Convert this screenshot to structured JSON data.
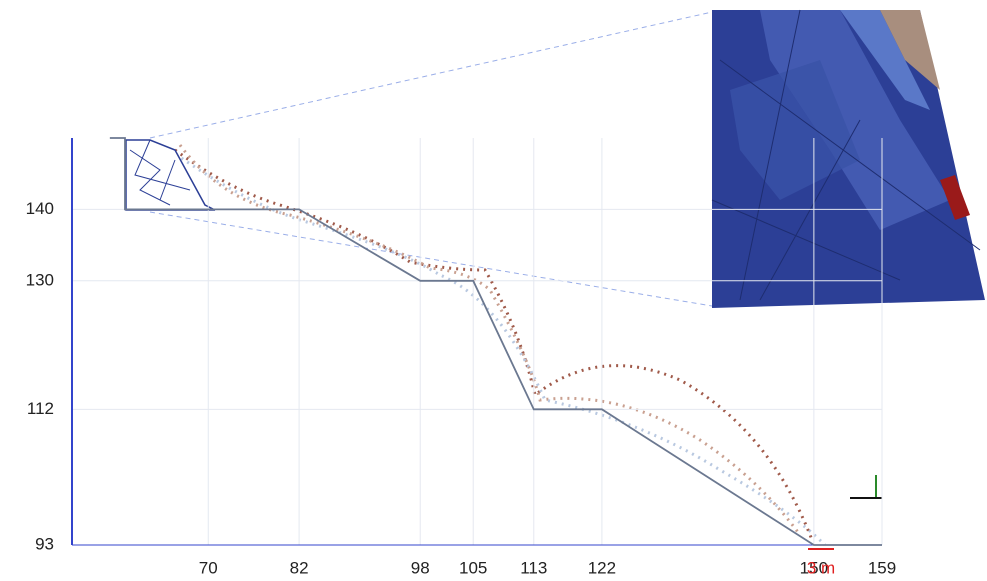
{
  "chart_data": {
    "type": "line",
    "x": [
      57,
      59,
      59,
      82,
      98,
      105,
      113,
      122,
      150,
      159
    ],
    "series": [
      {
        "color": "#6b7890",
        "values": [
          150,
          150,
          140,
          140,
          130,
          130,
          112,
          112,
          93,
          93
        ]
      }
    ],
    "xlim": [
      52,
      159
    ],
    "ylim": [
      93,
      150
    ],
    "xticks": [
      70,
      82,
      98,
      105,
      113,
      122,
      150,
      159
    ],
    "yticks": [
      93,
      112,
      130,
      140
    ],
    "grid": true,
    "axis_color": "#3344cc",
    "annotation": "3 m",
    "annotation_color": "#e02020"
  }
}
